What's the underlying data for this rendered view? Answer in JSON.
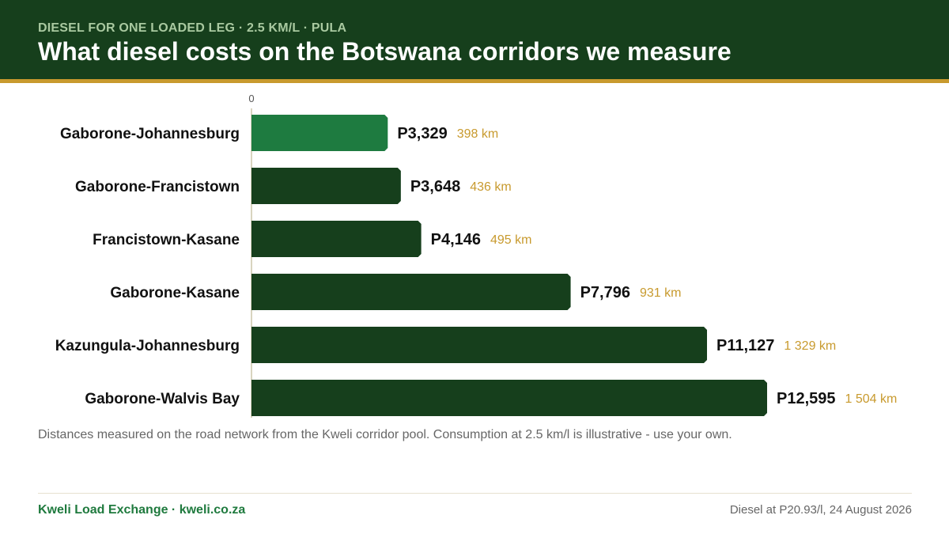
{
  "header": {
    "kicker": "DIESEL FOR ONE LOADED LEG · 2.5 KM/L · PULA",
    "title": "What diesel costs on the Botswana corridors we measure"
  },
  "chart_data": {
    "type": "bar",
    "orientation": "horizontal",
    "title": "What diesel costs on the Botswana corridors we measure",
    "xlim": [
      0,
      12595
    ],
    "x_ticks": [
      "0"
    ],
    "categories": [
      "Gaborone-Johannesburg",
      "Gaborone-Francistown",
      "Francistown-Kasane",
      "Gaborone-Kasane",
      "Kazungula-Johannesburg",
      "Gaborone-Walvis Bay"
    ],
    "values": [
      3329,
      3648,
      4146,
      7796,
      11127,
      12595
    ],
    "value_labels": [
      "P3,329",
      "P3,648",
      "P4,146",
      "P7,796",
      "P11,127",
      "P12,595"
    ],
    "distance_labels": [
      "398 km",
      "436 km",
      "495 km",
      "931 km",
      "1 329 km",
      "1 504 km"
    ],
    "highlight_index": 0,
    "colors": {
      "bar": "#163f1c",
      "highlight": "#1e7b40",
      "distance": "#c89a2e",
      "value": "#111111",
      "axis": "#d9d4bf"
    },
    "grid": false
  },
  "note": "Distances measured on the road network from the Kweli corridor pool. Consumption at 2.5 km/l is illustrative - use your own.",
  "footer": {
    "brand": "Kweli Load Exchange · kweli.co.za",
    "fuel_note": "Diesel at P20.93/l, 24 August 2026"
  }
}
